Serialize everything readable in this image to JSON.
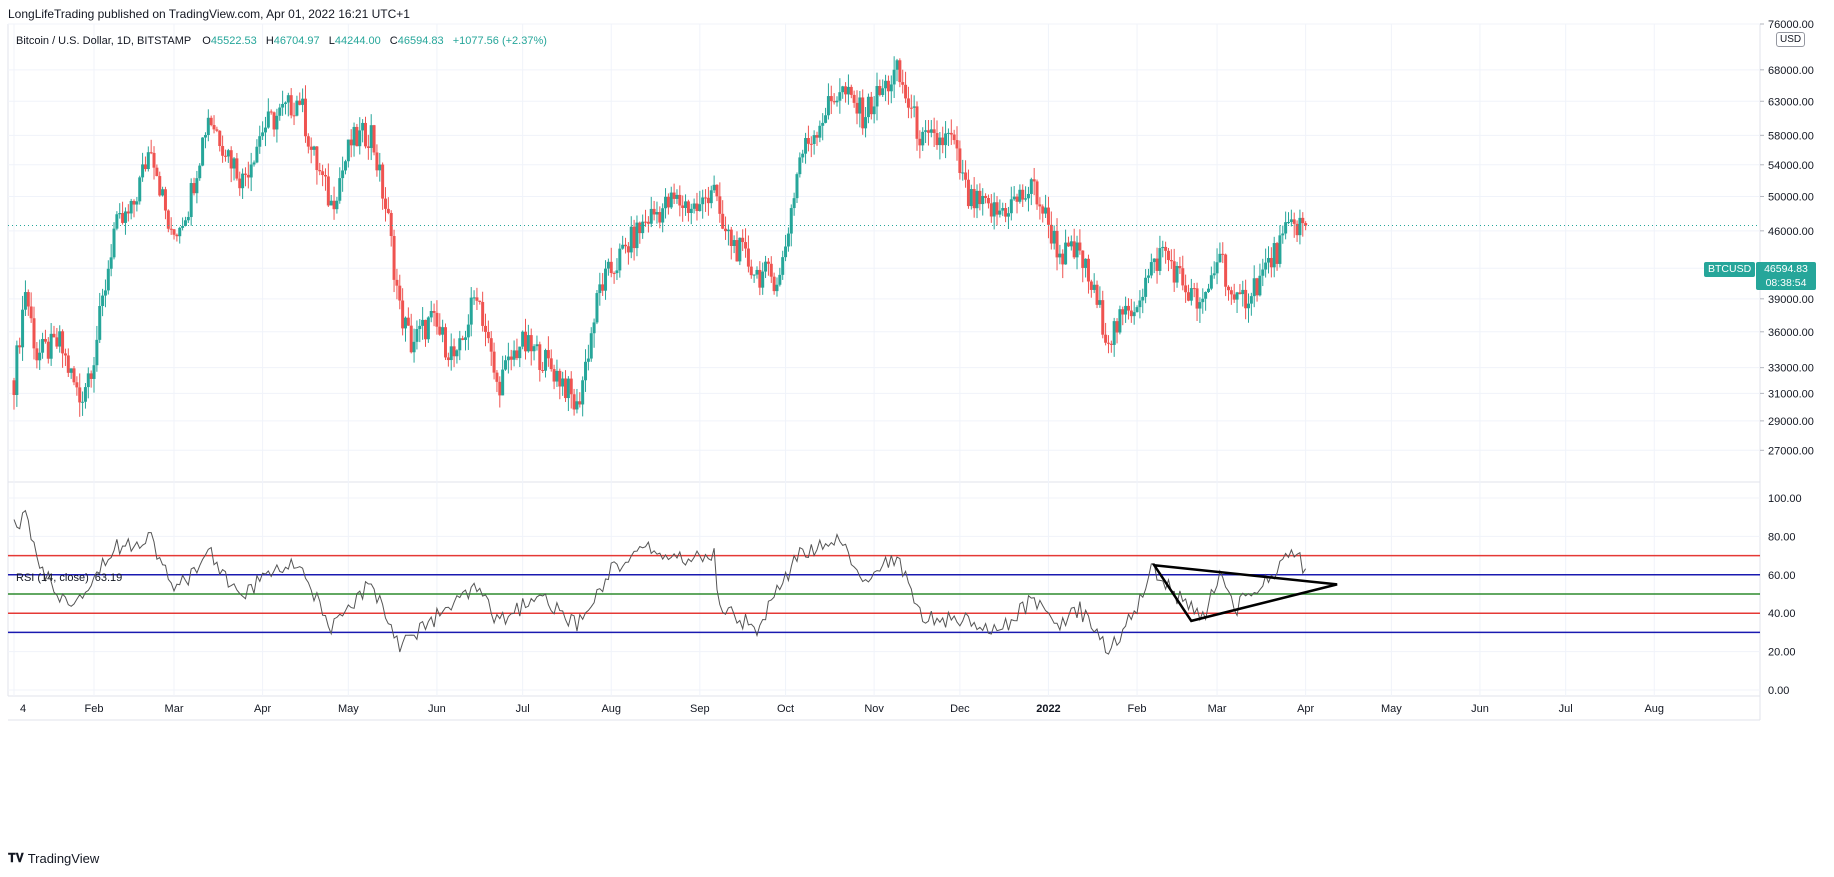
{
  "header": {
    "published_line": "LongLifeTrading published on TradingView.com, Apr 01, 2022 16:21 UTC+1"
  },
  "legend": {
    "symbol": "Bitcoin / U.S. Dollar, 1D, BITSTAMP",
    "open_label": "O",
    "open": "45522.53",
    "high_label": "H",
    "high": "46704.97",
    "low_label": "L",
    "low": "44244.00",
    "close_label": "C",
    "close": "46594.83",
    "change": "+1077.56 (+2.37%)"
  },
  "price_axis": {
    "currency": "USD",
    "symbol_tag": "BTCUSD",
    "last_price": "46594.83",
    "countdown": "08:38:54"
  },
  "rsi": {
    "label": "RSI (14, close)",
    "value": "63.19"
  },
  "footer": {
    "brand": "TradingView"
  },
  "colors": {
    "up": "#26a69a",
    "down": "#ef5350",
    "rsi_line": "#555555",
    "red_level": "#e53935",
    "blue_level": "#1a1ab0",
    "green_level": "#2e8b2e",
    "grid": "#f0f3fa",
    "triangle": "#000000"
  },
  "chart_data": [
    {
      "type": "candlestick",
      "title": "Bitcoin / U.S. Dollar, 1D, BITSTAMP",
      "scale": "log",
      "ylim": [
        25000,
        76000
      ],
      "y_ticks": [
        27000,
        29000,
        31000,
        33000,
        36000,
        39000,
        42000,
        46000,
        50000,
        54000,
        58000,
        63000,
        68000,
        76000
      ],
      "y_tick_labels": [
        "27000.00",
        "29000.00",
        "31000.00",
        "33000.00",
        "36000.00",
        "39000.00",
        "42000.00",
        "46000.00",
        "50000.00",
        "54000.00",
        "58000.00",
        "63000.00",
        "68000.00",
        "76000.00"
      ],
      "x_range": [
        "2021-01-04",
        "2022-08-31"
      ],
      "x_tick_labels": [
        "4",
        "Feb",
        "Mar",
        "Apr",
        "May",
        "Jun",
        "Jul",
        "Aug",
        "Sep",
        "Oct",
        "Nov",
        "Dec",
        "2022",
        "Feb",
        "Mar",
        "Apr",
        "May",
        "Jun",
        "Jul",
        "Aug"
      ],
      "x_tick_dates": [
        "2021-01-04",
        "2021-02-01",
        "2021-03-01",
        "2021-04-01",
        "2021-05-01",
        "2021-06-01",
        "2021-07-01",
        "2021-08-01",
        "2021-09-01",
        "2021-10-01",
        "2021-11-01",
        "2021-12-01",
        "2022-01-01",
        "2022-02-01",
        "2022-03-01",
        "2022-04-01",
        "2022-05-01",
        "2022-06-01",
        "2022-07-01",
        "2022-08-01"
      ],
      "series": [
        {
          "name": "BTCUSD",
          "points": [
            {
              "date": "2021-01-04",
              "close": 32000
            },
            {
              "date": "2021-01-08",
              "close": 40000
            },
            {
              "date": "2021-01-12",
              "close": 34000
            },
            {
              "date": "2021-01-20",
              "close": 35000
            },
            {
              "date": "2021-01-27",
              "close": 30500
            },
            {
              "date": "2021-02-01",
              "close": 34000
            },
            {
              "date": "2021-02-08",
              "close": 46000
            },
            {
              "date": "2021-02-14",
              "close": 48000
            },
            {
              "date": "2021-02-21",
              "close": 57000
            },
            {
              "date": "2021-02-28",
              "close": 45000
            },
            {
              "date": "2021-03-06",
              "close": 49000
            },
            {
              "date": "2021-03-13",
              "close": 61000
            },
            {
              "date": "2021-03-25",
              "close": 52000
            },
            {
              "date": "2021-04-01",
              "close": 59000
            },
            {
              "date": "2021-04-14",
              "close": 63500
            },
            {
              "date": "2021-04-18",
              "close": 56000
            },
            {
              "date": "2021-04-25",
              "close": 49000
            },
            {
              "date": "2021-05-02",
              "close": 57000
            },
            {
              "date": "2021-05-09",
              "close": 58500
            },
            {
              "date": "2021-05-15",
              "close": 47000
            },
            {
              "date": "2021-05-19",
              "close": 38000
            },
            {
              "date": "2021-05-23",
              "close": 35000
            },
            {
              "date": "2021-05-30",
              "close": 37000
            },
            {
              "date": "2021-06-08",
              "close": 33500
            },
            {
              "date": "2021-06-15",
              "close": 40000
            },
            {
              "date": "2021-06-22",
              "close": 31500
            },
            {
              "date": "2021-06-30",
              "close": 35000
            },
            {
              "date": "2021-07-07",
              "close": 34000
            },
            {
              "date": "2021-07-15",
              "close": 32000
            },
            {
              "date": "2021-07-20",
              "close": 29800
            },
            {
              "date": "2021-07-28",
              "close": 40000
            },
            {
              "date": "2021-08-07",
              "close": 44500
            },
            {
              "date": "2021-08-14",
              "close": 47500
            },
            {
              "date": "2021-08-23",
              "close": 49500
            },
            {
              "date": "2021-09-01",
              "close": 48500
            },
            {
              "date": "2021-09-06",
              "close": 52000
            },
            {
              "date": "2021-09-08",
              "close": 46500
            },
            {
              "date": "2021-09-21",
              "close": 41500
            },
            {
              "date": "2021-09-29",
              "close": 41000
            },
            {
              "date": "2021-10-06",
              "close": 55000
            },
            {
              "date": "2021-10-15",
              "close": 61500
            },
            {
              "date": "2021-10-20",
              "close": 65000
            },
            {
              "date": "2021-10-28",
              "close": 61000
            },
            {
              "date": "2021-11-09",
              "close": 67500
            },
            {
              "date": "2021-11-18",
              "close": 57000
            },
            {
              "date": "2021-11-28",
              "close": 57500
            },
            {
              "date": "2021-12-04",
              "close": 49500
            },
            {
              "date": "2021-12-14",
              "close": 48000
            },
            {
              "date": "2021-12-27",
              "close": 51000
            },
            {
              "date": "2022-01-05",
              "close": 43500
            },
            {
              "date": "2022-01-12",
              "close": 43500
            },
            {
              "date": "2022-01-22",
              "close": 35500
            },
            {
              "date": "2022-01-31",
              "close": 38500
            },
            {
              "date": "2022-02-10",
              "close": 44000
            },
            {
              "date": "2022-02-18",
              "close": 40000
            },
            {
              "date": "2022-02-24",
              "close": 38000
            },
            {
              "date": "2022-03-02",
              "close": 44000
            },
            {
              "date": "2022-03-07",
              "close": 38000
            },
            {
              "date": "2022-03-16",
              "close": 41000
            },
            {
              "date": "2022-03-28",
              "close": 47000
            },
            {
              "date": "2022-04-01",
              "close": 46594.83
            }
          ]
        }
      ]
    },
    {
      "type": "line",
      "title": "RSI (14, close)",
      "ylim": [
        0,
        100
      ],
      "y_ticks": [
        0,
        20,
        40,
        60,
        80,
        100
      ],
      "y_tick_labels": [
        "0.00",
        "20.00",
        "40.00",
        "60.00",
        "80.00",
        "100.00"
      ],
      "levels": [
        {
          "value": 70,
          "color": "red"
        },
        {
          "value": 60,
          "color": "blue"
        },
        {
          "value": 50,
          "color": "green"
        },
        {
          "value": 40,
          "color": "red"
        },
        {
          "value": 30,
          "color": "blue"
        }
      ],
      "series": [
        {
          "name": "RSI",
          "points": [
            {
              "date": "2021-01-04",
              "value": 85
            },
            {
              "date": "2021-01-08",
              "value": 89
            },
            {
              "date": "2021-01-14",
              "value": 62
            },
            {
              "date": "2021-01-22",
              "value": 45
            },
            {
              "date": "2021-01-28",
              "value": 52
            },
            {
              "date": "2021-02-08",
              "value": 74
            },
            {
              "date": "2021-02-21",
              "value": 80
            },
            {
              "date": "2021-03-01",
              "value": 50
            },
            {
              "date": "2021-03-13",
              "value": 72
            },
            {
              "date": "2021-03-25",
              "value": 47
            },
            {
              "date": "2021-04-01",
              "value": 60
            },
            {
              "date": "2021-04-14",
              "value": 66
            },
            {
              "date": "2021-04-25",
              "value": 31
            },
            {
              "date": "2021-05-09",
              "value": 56
            },
            {
              "date": "2021-05-19",
              "value": 24
            },
            {
              "date": "2021-05-30",
              "value": 36
            },
            {
              "date": "2021-06-15",
              "value": 53
            },
            {
              "date": "2021-06-22",
              "value": 35
            },
            {
              "date": "2021-07-07",
              "value": 49
            },
            {
              "date": "2021-07-20",
              "value": 33
            },
            {
              "date": "2021-08-01",
              "value": 63
            },
            {
              "date": "2021-08-14",
              "value": 74
            },
            {
              "date": "2021-08-23",
              "value": 68
            },
            {
              "date": "2021-09-06",
              "value": 70
            },
            {
              "date": "2021-09-08",
              "value": 43
            },
            {
              "date": "2021-09-21",
              "value": 32
            },
            {
              "date": "2021-10-06",
              "value": 71
            },
            {
              "date": "2021-10-20",
              "value": 77
            },
            {
              "date": "2021-10-28",
              "value": 58
            },
            {
              "date": "2021-11-09",
              "value": 69
            },
            {
              "date": "2021-11-18",
              "value": 38
            },
            {
              "date": "2021-12-04",
              "value": 36
            },
            {
              "date": "2021-12-14",
              "value": 30
            },
            {
              "date": "2021-12-27",
              "value": 48
            },
            {
              "date": "2022-01-05",
              "value": 34
            },
            {
              "date": "2022-01-12",
              "value": 42
            },
            {
              "date": "2022-01-22",
              "value": 21
            },
            {
              "date": "2022-01-31",
              "value": 40
            },
            {
              "date": "2022-02-06",
              "value": 64
            },
            {
              "date": "2022-02-18",
              "value": 44
            },
            {
              "date": "2022-02-24",
              "value": 37
            },
            {
              "date": "2022-03-02",
              "value": 62
            },
            {
              "date": "2022-03-07",
              "value": 42
            },
            {
              "date": "2022-03-16",
              "value": 54
            },
            {
              "date": "2022-03-28",
              "value": 71
            },
            {
              "date": "2022-04-01",
              "value": 63.19
            }
          ]
        }
      ],
      "annotations": [
        {
          "type": "triangle",
          "points": [
            {
              "date": "2022-02-07",
              "value": 65
            },
            {
              "date": "2022-04-12",
              "value": 55
            },
            {
              "date": "2022-02-20",
              "value": 36
            }
          ]
        }
      ]
    }
  ]
}
